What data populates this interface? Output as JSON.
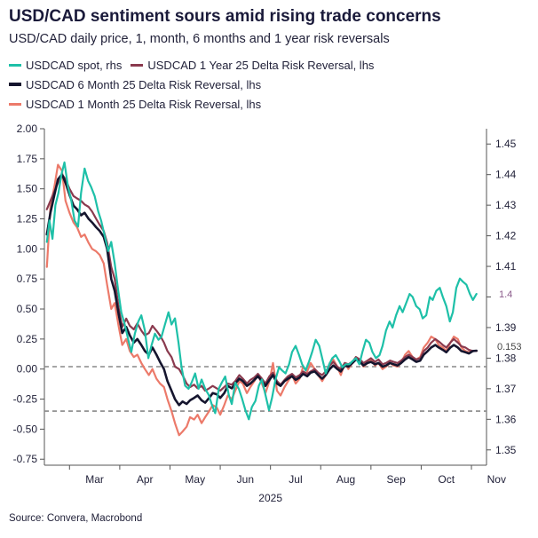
{
  "title": "USD/CAD sentiment sours amid rising trade concerns",
  "subtitle": "USD/CAD daily price, 1, month, 6 months and 1 year risk reversals",
  "source": "Source: Convera, Macrobond",
  "legend": {
    "spot": "USDCAD spot, rhs",
    "rr1y": "USDCAD 1 Year 25 Delta Risk Reversal, lhs",
    "rr6m": "USDCAD 6 Month 25 Delta Risk Reversal, lhs",
    "rr1m": "USDCAD 1 Month 25 Delta Risk Reversal, lhs"
  },
  "colors": {
    "spot": "#1ec0a8",
    "rr1y": "#8a3a4e",
    "rr6m": "#15152e",
    "rr1m": "#ec7a6a",
    "reference_lines": "#888888",
    "last_value_label": "#8a5a8a"
  },
  "chart_data": {
    "type": "line",
    "x_axis": {
      "tick_labels": [
        "Mar",
        "Apr",
        "May",
        "Jun",
        "Jul",
        "Aug",
        "Sep",
        "Oct",
        "Nov"
      ],
      "year_label": "2025",
      "range_months": [
        1.5,
        10.3
      ]
    },
    "y_left": {
      "range": [
        -0.8,
        2.0
      ],
      "ticks": [
        -0.75,
        -0.5,
        -0.25,
        0.0,
        0.25,
        0.5,
        0.75,
        1.0,
        1.25,
        1.5,
        1.75,
        2.0
      ],
      "tick_labels": [
        "-0.75",
        "-0.50",
        "-0.25",
        "0.00",
        "0.25",
        "0.50",
        "0.75",
        "1.00",
        "1.25",
        "1.50",
        "1.75",
        "2.00"
      ]
    },
    "y_right": {
      "range": [
        1.345,
        1.455
      ],
      "ticks": [
        1.35,
        1.36,
        1.37,
        1.38,
        1.39,
        1.4,
        1.41,
        1.42,
        1.43,
        1.44,
        1.45
      ],
      "tick_labels": [
        "1.35",
        "1.36",
        "1.37",
        "1.38",
        "1.39",
        "",
        "1.41",
        "1.42",
        "1.43",
        "1.44",
        "1.45"
      ]
    },
    "reference_lines_left": [
      0.02,
      -0.35
    ],
    "last_value_labels": {
      "spot": "1.4",
      "rr6m": "0.153"
    },
    "series": [
      {
        "name": "USDCAD spot, rhs",
        "axis": "right",
        "x": [
          1.55,
          1.6,
          1.66,
          1.72,
          1.78,
          1.84,
          1.9,
          1.97,
          2.03,
          2.1,
          2.17,
          2.23,
          2.3,
          2.37,
          2.43,
          2.5,
          2.57,
          2.63,
          2.7,
          2.77,
          2.83,
          2.9,
          2.97,
          3.03,
          3.1,
          3.17,
          3.23,
          3.3,
          3.37,
          3.43,
          3.5,
          3.57,
          3.63,
          3.7,
          3.77,
          3.83,
          3.9,
          3.97,
          4.03,
          4.1,
          4.17,
          4.23,
          4.3,
          4.37,
          4.43,
          4.5,
          4.57,
          4.63,
          4.7,
          4.77,
          4.83,
          4.9,
          4.97,
          5.03,
          5.1,
          5.17,
          5.23,
          5.3,
          5.37,
          5.43,
          5.5,
          5.57,
          5.63,
          5.7,
          5.77,
          5.83,
          5.9,
          5.97,
          6.03,
          6.1,
          6.17,
          6.23,
          6.3,
          6.37,
          6.43,
          6.5,
          6.57,
          6.63,
          6.7,
          6.77,
          6.83,
          6.9,
          6.97,
          7.03,
          7.1,
          7.17,
          7.23,
          7.3,
          7.37,
          7.43,
          7.5,
          7.57,
          7.63,
          7.7,
          7.77,
          7.83,
          7.9,
          7.97,
          8.03,
          8.1,
          8.17,
          8.23,
          8.3,
          8.37,
          8.43,
          8.5,
          8.57,
          8.63,
          8.7,
          8.77,
          8.83,
          8.9,
          8.97,
          9.03,
          9.1,
          9.17,
          9.23,
          9.3,
          9.37,
          9.43,
          9.5,
          9.57,
          9.63,
          9.7,
          9.77,
          9.83,
          9.9,
          9.97,
          10.03,
          10.1
        ],
        "values": [
          1.418,
          1.425,
          1.419,
          1.43,
          1.434,
          1.44,
          1.444,
          1.436,
          1.432,
          1.425,
          1.423,
          1.434,
          1.442,
          1.438,
          1.436,
          1.433,
          1.428,
          1.425,
          1.42,
          1.415,
          1.418,
          1.411,
          1.402,
          1.395,
          1.391,
          1.386,
          1.382,
          1.388,
          1.392,
          1.394,
          1.389,
          1.38,
          1.384,
          1.388,
          1.386,
          1.387,
          1.391,
          1.395,
          1.391,
          1.393,
          1.385,
          1.377,
          1.371,
          1.37,
          1.372,
          1.375,
          1.37,
          1.373,
          1.37,
          1.368,
          1.365,
          1.362,
          1.37,
          1.372,
          1.374,
          1.368,
          1.365,
          1.372,
          1.37,
          1.367,
          1.363,
          1.36,
          1.364,
          1.366,
          1.371,
          1.373,
          1.368,
          1.363,
          1.367,
          1.373,
          1.377,
          1.376,
          1.375,
          1.378,
          1.382,
          1.384,
          1.381,
          1.378,
          1.376,
          1.379,
          1.382,
          1.386,
          1.384,
          1.38,
          1.375,
          1.378,
          1.38,
          1.381,
          1.379,
          1.377,
          1.378,
          1.378,
          1.379,
          1.38,
          1.378,
          1.382,
          1.386,
          1.385,
          1.382,
          1.38,
          1.381,
          1.384,
          1.389,
          1.392,
          1.39,
          1.394,
          1.397,
          1.395,
          1.398,
          1.401,
          1.4,
          1.397,
          1.396,
          1.393,
          1.394,
          1.4,
          1.399,
          1.402,
          1.403,
          1.4,
          1.397,
          1.392,
          1.395,
          1.403,
          1.406,
          1.405,
          1.404,
          1.401,
          1.399,
          1.401
        ]
      },
      {
        "name": "USDCAD 1 Year 25 Delta Risk Reversal, lhs",
        "axis": "left",
        "x": [
          1.55,
          1.62,
          1.7,
          1.77,
          1.85,
          1.92,
          2.0,
          2.08,
          2.15,
          2.23,
          2.3,
          2.38,
          2.45,
          2.53,
          2.6,
          2.68,
          2.75,
          2.83,
          2.9,
          2.98,
          3.05,
          3.13,
          3.2,
          3.28,
          3.35,
          3.43,
          3.5,
          3.58,
          3.65,
          3.73,
          3.8,
          3.88,
          3.95,
          4.03,
          4.1,
          4.18,
          4.25,
          4.33,
          4.4,
          4.48,
          4.55,
          4.63,
          4.7,
          4.78,
          4.85,
          4.93,
          5.0,
          5.08,
          5.15,
          5.23,
          5.3,
          5.38,
          5.45,
          5.53,
          5.6,
          5.68,
          5.75,
          5.83,
          5.9,
          5.98,
          6.05,
          6.13,
          6.2,
          6.28,
          6.35,
          6.43,
          6.5,
          6.58,
          6.65,
          6.73,
          6.8,
          6.88,
          6.95,
          7.03,
          7.1,
          7.18,
          7.25,
          7.33,
          7.4,
          7.48,
          7.55,
          7.63,
          7.7,
          7.78,
          7.85,
          7.93,
          8.0,
          8.08,
          8.15,
          8.23,
          8.3,
          8.38,
          8.45,
          8.53,
          8.6,
          8.68,
          8.75,
          8.83,
          8.9,
          8.98,
          9.05,
          9.13,
          9.2,
          9.28,
          9.35,
          9.43,
          9.5,
          9.58,
          9.65,
          9.73,
          9.8,
          9.88,
          9.95,
          10.03,
          10.1
        ],
        "values": [
          1.33,
          1.4,
          1.48,
          1.55,
          1.62,
          1.58,
          1.5,
          1.44,
          1.42,
          1.4,
          1.37,
          1.35,
          1.31,
          1.25,
          1.2,
          1.15,
          1.05,
          0.85,
          0.75,
          0.5,
          0.35,
          0.42,
          0.36,
          0.33,
          0.38,
          0.32,
          0.28,
          0.3,
          0.36,
          0.32,
          0.28,
          0.22,
          0.15,
          0.1,
          0.02,
          0.0,
          -0.05,
          -0.12,
          -0.15,
          -0.13,
          -0.16,
          -0.14,
          -0.18,
          -0.16,
          -0.14,
          -0.16,
          -0.18,
          -0.15,
          -0.12,
          -0.13,
          -0.1,
          -0.05,
          -0.08,
          -0.12,
          -0.09,
          -0.07,
          -0.04,
          -0.08,
          -0.12,
          -0.06,
          -0.03,
          -0.1,
          -0.13,
          -0.09,
          -0.06,
          -0.04,
          -0.07,
          -0.05,
          -0.02,
          -0.04,
          -0.02,
          0.0,
          -0.03,
          -0.05,
          -0.02,
          0.03,
          0.06,
          0.02,
          0.0,
          0.05,
          0.04,
          0.06,
          0.1,
          0.08,
          0.05,
          0.07,
          0.09,
          0.06,
          0.08,
          0.04,
          0.05,
          0.07,
          0.06,
          0.05,
          0.07,
          0.1,
          0.12,
          0.1,
          0.08,
          0.09,
          0.15,
          0.18,
          0.22,
          0.25,
          0.23,
          0.2,
          0.18,
          0.22,
          0.25,
          0.22,
          0.19,
          0.18,
          0.16,
          0.15,
          0.15
        ]
      },
      {
        "name": "USDCAD 6 Month 25 Delta Risk Reversal, lhs",
        "axis": "left",
        "x": [
          1.55,
          1.62,
          1.7,
          1.77,
          1.85,
          1.92,
          2.0,
          2.08,
          2.15,
          2.23,
          2.3,
          2.38,
          2.45,
          2.53,
          2.6,
          2.68,
          2.75,
          2.83,
          2.9,
          2.98,
          3.05,
          3.13,
          3.2,
          3.28,
          3.35,
          3.43,
          3.5,
          3.58,
          3.65,
          3.73,
          3.8,
          3.88,
          3.95,
          4.03,
          4.1,
          4.18,
          4.25,
          4.33,
          4.4,
          4.48,
          4.55,
          4.63,
          4.7,
          4.78,
          4.85,
          4.93,
          5.0,
          5.08,
          5.15,
          5.23,
          5.3,
          5.38,
          5.45,
          5.53,
          5.6,
          5.68,
          5.75,
          5.83,
          5.9,
          5.98,
          6.05,
          6.13,
          6.2,
          6.28,
          6.35,
          6.43,
          6.5,
          6.58,
          6.65,
          6.73,
          6.8,
          6.88,
          6.95,
          7.03,
          7.1,
          7.18,
          7.25,
          7.33,
          7.4,
          7.48,
          7.55,
          7.63,
          7.7,
          7.78,
          7.85,
          7.93,
          8.0,
          8.08,
          8.15,
          8.23,
          8.3,
          8.38,
          8.45,
          8.53,
          8.6,
          8.68,
          8.75,
          8.83,
          8.9,
          8.98,
          9.05,
          9.13,
          9.2,
          9.28,
          9.35,
          9.43,
          9.5,
          9.58,
          9.65,
          9.73,
          9.8,
          9.88,
          9.95,
          10.03,
          10.1
        ],
        "values": [
          1.12,
          1.3,
          1.45,
          1.58,
          1.62,
          1.55,
          1.45,
          1.36,
          1.33,
          1.28,
          1.3,
          1.25,
          1.22,
          1.18,
          1.15,
          1.1,
          1.0,
          0.75,
          0.65,
          0.45,
          0.3,
          0.35,
          0.28,
          0.22,
          0.25,
          0.2,
          0.15,
          0.12,
          0.18,
          0.12,
          0.06,
          0.0,
          -0.1,
          -0.18,
          -0.25,
          -0.3,
          -0.27,
          -0.29,
          -0.26,
          -0.24,
          -0.22,
          -0.26,
          -0.28,
          -0.24,
          -0.2,
          -0.21,
          -0.24,
          -0.2,
          -0.14,
          -0.16,
          -0.12,
          -0.08,
          -0.1,
          -0.14,
          -0.12,
          -0.09,
          -0.06,
          -0.1,
          -0.14,
          -0.09,
          -0.05,
          -0.12,
          -0.14,
          -0.1,
          -0.08,
          -0.06,
          -0.09,
          -0.07,
          -0.04,
          -0.06,
          -0.03,
          -0.02,
          -0.05,
          -0.08,
          -0.05,
          0.0,
          0.03,
          0.0,
          -0.02,
          0.03,
          0.02,
          0.05,
          0.08,
          0.06,
          0.03,
          0.05,
          0.06,
          0.04,
          0.05,
          0.02,
          0.03,
          0.05,
          0.04,
          0.03,
          0.05,
          0.08,
          0.1,
          0.08,
          0.06,
          0.07,
          0.12,
          0.15,
          0.18,
          0.2,
          0.18,
          0.16,
          0.14,
          0.18,
          0.2,
          0.18,
          0.15,
          0.14,
          0.13,
          0.15,
          0.153
        ]
      },
      {
        "name": "USDCAD 1 Month 25 Delta Risk Reversal, lhs",
        "axis": "left",
        "x": [
          1.55,
          1.62,
          1.7,
          1.77,
          1.85,
          1.92,
          2.0,
          2.08,
          2.15,
          2.23,
          2.3,
          2.38,
          2.45,
          2.53,
          2.6,
          2.68,
          2.75,
          2.83,
          2.9,
          2.98,
          3.05,
          3.13,
          3.2,
          3.28,
          3.35,
          3.43,
          3.5,
          3.58,
          3.65,
          3.73,
          3.8,
          3.88,
          3.95,
          4.03,
          4.1,
          4.18,
          4.25,
          4.33,
          4.4,
          4.48,
          4.55,
          4.63,
          4.7,
          4.78,
          4.85,
          4.93,
          5.0,
          5.08,
          5.15,
          5.23,
          5.3,
          5.38,
          5.45,
          5.53,
          5.6,
          5.68,
          5.75,
          5.83,
          5.9,
          5.98,
          6.05,
          6.13,
          6.2,
          6.28,
          6.35,
          6.43,
          6.5,
          6.58,
          6.65,
          6.73,
          6.8,
          6.88,
          6.95,
          7.03,
          7.1,
          7.18,
          7.25,
          7.33,
          7.4,
          7.48,
          7.55,
          7.63,
          7.7,
          7.78,
          7.85,
          7.93,
          8.0,
          8.08,
          8.15,
          8.23,
          8.3,
          8.38,
          8.45,
          8.53,
          8.6,
          8.68,
          8.75,
          8.83,
          8.9,
          8.98,
          9.05,
          9.13,
          9.2,
          9.28,
          9.35,
          9.43,
          9.5,
          9.58,
          9.65,
          9.73,
          9.8,
          9.88,
          9.95,
          10.03,
          10.1
        ],
        "values": [
          0.85,
          1.35,
          1.52,
          1.7,
          1.65,
          1.4,
          1.3,
          1.22,
          1.18,
          1.1,
          1.12,
          1.05,
          1.0,
          0.98,
          0.95,
          0.88,
          0.7,
          0.5,
          0.55,
          0.35,
          0.2,
          0.25,
          0.15,
          0.1,
          0.12,
          0.05,
          0.0,
          -0.05,
          0.0,
          -0.08,
          -0.12,
          -0.15,
          -0.25,
          -0.35,
          -0.45,
          -0.55,
          -0.52,
          -0.48,
          -0.4,
          -0.42,
          -0.38,
          -0.45,
          -0.4,
          -0.35,
          -0.3,
          -0.32,
          -0.38,
          -0.3,
          -0.22,
          -0.25,
          -0.18,
          -0.1,
          -0.12,
          -0.2,
          -0.15,
          -0.1,
          -0.05,
          -0.12,
          -0.2,
          -0.1,
          0.05,
          -0.18,
          -0.22,
          -0.15,
          -0.1,
          -0.05,
          -0.12,
          -0.08,
          0.02,
          -0.02,
          0.05,
          0.0,
          -0.05,
          -0.1,
          -0.05,
          0.05,
          0.08,
          0.02,
          -0.05,
          0.05,
          0.0,
          0.05,
          0.1,
          0.07,
          0.02,
          0.05,
          0.08,
          0.03,
          0.05,
          0.0,
          0.02,
          0.05,
          0.03,
          0.02,
          0.05,
          0.12,
          0.15,
          0.1,
          0.08,
          0.1,
          0.18,
          0.22,
          0.27,
          0.25,
          0.2,
          0.18,
          0.15,
          0.22,
          0.27,
          0.25,
          0.18,
          0.15,
          0.14,
          0.15,
          0.15
        ]
      }
    ]
  }
}
